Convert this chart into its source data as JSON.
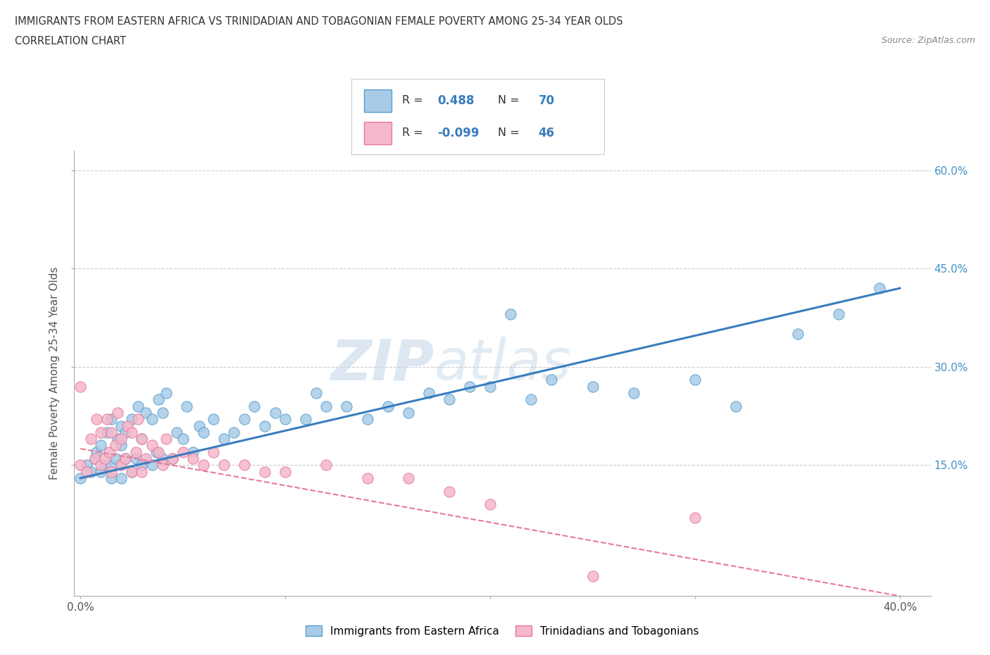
{
  "title_line1": "IMMIGRANTS FROM EASTERN AFRICA VS TRINIDADIAN AND TOBAGONIAN FEMALE POVERTY AMONG 25-34 YEAR OLDS",
  "title_line2": "CORRELATION CHART",
  "source_text": "Source: ZipAtlas.com",
  "ylabel": "Female Poverty Among 25-34 Year Olds",
  "xlim": [
    -0.003,
    0.415
  ],
  "ylim": [
    -0.05,
    0.63
  ],
  "xtick_positions": [
    0.0,
    0.1,
    0.2,
    0.3,
    0.4
  ],
  "xtick_labels": [
    "0.0%",
    "",
    "",
    "",
    "40.0%"
  ],
  "ytick_positions": [
    0.15,
    0.3,
    0.45,
    0.6
  ],
  "ytick_labels": [
    "15.0%",
    "30.0%",
    "45.0%",
    "60.0%"
  ],
  "watermark_zip": "ZIP",
  "watermark_atlas": "atlas",
  "color_blue": "#a8cce8",
  "color_blue_edge": "#5b9ec9",
  "color_blue_line": "#3a7dbf",
  "color_pink": "#f5b8cb",
  "color_pink_edge": "#e8789a",
  "color_pink_line": "#e8789a",
  "grid_color": "#cccccc",
  "blue_scatter_x": [
    0.0,
    0.003,
    0.005,
    0.007,
    0.008,
    0.01,
    0.01,
    0.012,
    0.013,
    0.015,
    0.015,
    0.015,
    0.017,
    0.018,
    0.02,
    0.02,
    0.02,
    0.02,
    0.022,
    0.022,
    0.025,
    0.025,
    0.027,
    0.028,
    0.03,
    0.03,
    0.032,
    0.035,
    0.035,
    0.037,
    0.038,
    0.04,
    0.04,
    0.042,
    0.045,
    0.047,
    0.05,
    0.052,
    0.055,
    0.058,
    0.06,
    0.065,
    0.07,
    0.075,
    0.08,
    0.085,
    0.09,
    0.095,
    0.1,
    0.11,
    0.115,
    0.12,
    0.13,
    0.14,
    0.15,
    0.16,
    0.17,
    0.18,
    0.19,
    0.2,
    0.21,
    0.22,
    0.23,
    0.25,
    0.27,
    0.3,
    0.32,
    0.35,
    0.37,
    0.39
  ],
  "blue_scatter_y": [
    0.13,
    0.15,
    0.14,
    0.16,
    0.17,
    0.14,
    0.18,
    0.15,
    0.2,
    0.13,
    0.15,
    0.22,
    0.16,
    0.19,
    0.13,
    0.15,
    0.18,
    0.21,
    0.16,
    0.2,
    0.14,
    0.22,
    0.16,
    0.24,
    0.15,
    0.19,
    0.23,
    0.15,
    0.22,
    0.17,
    0.25,
    0.16,
    0.23,
    0.26,
    0.16,
    0.2,
    0.19,
    0.24,
    0.17,
    0.21,
    0.2,
    0.22,
    0.19,
    0.2,
    0.22,
    0.24,
    0.21,
    0.23,
    0.22,
    0.22,
    0.26,
    0.24,
    0.24,
    0.22,
    0.24,
    0.23,
    0.26,
    0.25,
    0.27,
    0.27,
    0.38,
    0.25,
    0.28,
    0.27,
    0.26,
    0.28,
    0.24,
    0.35,
    0.38,
    0.42
  ],
  "pink_scatter_x": [
    0.0,
    0.0,
    0.003,
    0.005,
    0.007,
    0.008,
    0.01,
    0.01,
    0.012,
    0.013,
    0.014,
    0.015,
    0.015,
    0.017,
    0.018,
    0.02,
    0.02,
    0.022,
    0.023,
    0.025,
    0.025,
    0.027,
    0.028,
    0.03,
    0.03,
    0.032,
    0.035,
    0.038,
    0.04,
    0.042,
    0.045,
    0.05,
    0.055,
    0.06,
    0.065,
    0.07,
    0.08,
    0.09,
    0.1,
    0.12,
    0.14,
    0.16,
    0.18,
    0.2,
    0.25,
    0.3
  ],
  "pink_scatter_y": [
    0.15,
    0.27,
    0.14,
    0.19,
    0.16,
    0.22,
    0.15,
    0.2,
    0.16,
    0.22,
    0.17,
    0.14,
    0.2,
    0.18,
    0.23,
    0.15,
    0.19,
    0.16,
    0.21,
    0.14,
    0.2,
    0.17,
    0.22,
    0.14,
    0.19,
    0.16,
    0.18,
    0.17,
    0.15,
    0.19,
    0.16,
    0.17,
    0.16,
    0.15,
    0.17,
    0.15,
    0.15,
    0.14,
    0.14,
    0.15,
    0.13,
    0.13,
    0.11,
    0.09,
    -0.02,
    0.07
  ],
  "blue_line_x": [
    0.0,
    0.4
  ],
  "blue_line_y": [
    0.13,
    0.42
  ],
  "pink_line_x": [
    0.0,
    0.4
  ],
  "pink_line_y": [
    0.175,
    -0.05
  ],
  "legend_label1": "Immigrants from Eastern Africa",
  "legend_label2": "Trinidadians and Tobagonians"
}
